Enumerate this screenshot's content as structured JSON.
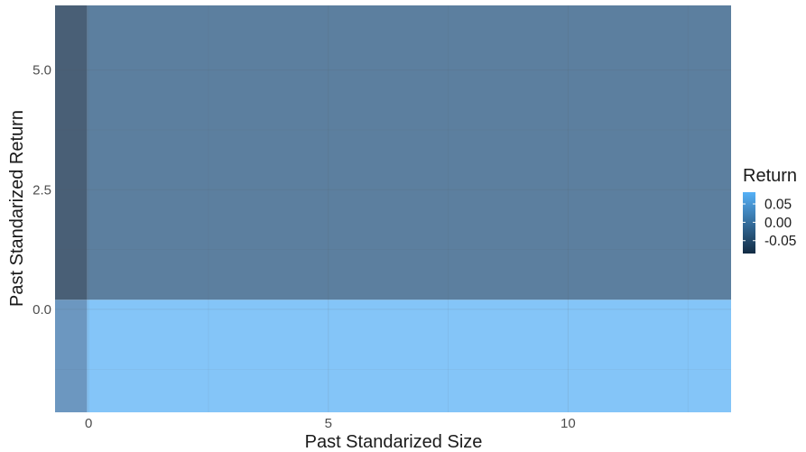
{
  "chart_data": {
    "type": "heatmap",
    "xlabel": "Past Standarized Size",
    "ylabel": "Past Standarized Return",
    "xlim": [
      -0.7,
      13.4
    ],
    "ylim": [
      -2.15,
      6.35
    ],
    "x_ticks": [
      0,
      5,
      10
    ],
    "x_tick_labels": [
      "0",
      "5",
      "10"
    ],
    "y_ticks": [
      0.0,
      2.5,
      5.0
    ],
    "y_tick_labels": [
      "0.0",
      "2.5",
      "5.0"
    ],
    "grid": true,
    "legend": {
      "title": "Return",
      "placement": "right",
      "breaks": [
        0.05,
        0.0,
        -0.05
      ],
      "labels": [
        "0.05",
        "0.00",
        "-0.05"
      ],
      "range": [
        -0.085,
        0.082
      ],
      "low_color": "#132b43",
      "high_color": "#56b1f7"
    },
    "tiles": [
      {
        "x_range": [
          -0.7,
          -0.03
        ],
        "y_range": [
          0.2,
          6.35
        ],
        "value": -0.04,
        "color": "#495f76"
      },
      {
        "x_range": [
          -0.03,
          13.4
        ],
        "y_range": [
          0.2,
          6.35
        ],
        "value": -0.005,
        "color": "#5c7f9f"
      },
      {
        "x_range": [
          -0.7,
          -0.03
        ],
        "y_range": [
          -2.15,
          0.2
        ],
        "value": 0.005,
        "color": "#6c97c0"
      },
      {
        "x_range": [
          -0.03,
          13.4
        ],
        "y_range": [
          -2.15,
          0.2
        ],
        "value": 0.075,
        "color": "#84c5f8"
      }
    ]
  }
}
